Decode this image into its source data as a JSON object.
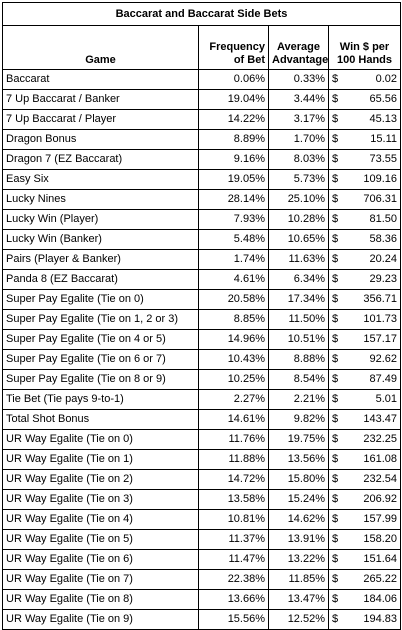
{
  "title": "Baccarat and Baccarat Side Bets",
  "headers": {
    "game": "Game",
    "freq_line1": "Frequency",
    "freq_line2": "of Bet",
    "adv_line1": "Average",
    "adv_line2": "Advantage",
    "win_line1": "Win $ per",
    "win_line2": "100 Hands"
  },
  "rows": [
    {
      "game": "Baccarat",
      "freq": "0.06%",
      "adv": "0.33%",
      "cur": "$",
      "win": "0.02"
    },
    {
      "game": "7 Up Baccarat / Banker",
      "freq": "19.04%",
      "adv": "3.44%",
      "cur": "$",
      "win": "65.56"
    },
    {
      "game": "7 Up Baccarat / Player",
      "freq": "14.22%",
      "adv": "3.17%",
      "cur": "$",
      "win": "45.13"
    },
    {
      "game": "Dragon Bonus",
      "freq": "8.89%",
      "adv": "1.70%",
      "cur": "$",
      "win": "15.11"
    },
    {
      "game": "Dragon 7 (EZ Baccarat)",
      "freq": "9.16%",
      "adv": "8.03%",
      "cur": "$",
      "win": "73.55"
    },
    {
      "game": "Easy Six",
      "freq": "19.05%",
      "adv": "5.73%",
      "cur": "$",
      "win": "109.16"
    },
    {
      "game": "Lucky Nines",
      "freq": "28.14%",
      "adv": "25.10%",
      "cur": "$",
      "win": "706.31"
    },
    {
      "game": "Lucky Win (Player)",
      "freq": "7.93%",
      "adv": "10.28%",
      "cur": "$",
      "win": "81.50"
    },
    {
      "game": "Lucky Win (Banker)",
      "freq": "5.48%",
      "adv": "10.65%",
      "cur": "$",
      "win": "58.36"
    },
    {
      "game": "Pairs (Player & Banker)",
      "freq": "1.74%",
      "adv": "11.63%",
      "cur": "$",
      "win": "20.24"
    },
    {
      "game": "Panda 8 (EZ Baccarat)",
      "freq": "4.61%",
      "adv": "6.34%",
      "cur": "$",
      "win": "29.23"
    },
    {
      "game": "Super Pay Egalite (Tie on 0)",
      "freq": "20.58%",
      "adv": "17.34%",
      "cur": "$",
      "win": "356.71"
    },
    {
      "game": "Super Pay Egalite (Tie on 1, 2 or 3)",
      "freq": "8.85%",
      "adv": "11.50%",
      "cur": "$",
      "win": "101.73"
    },
    {
      "game": "Super Pay Egalite (Tie on 4 or 5)",
      "freq": "14.96%",
      "adv": "10.51%",
      "cur": "$",
      "win": "157.17"
    },
    {
      "game": "Super Pay Egalite (Tie on 6 or 7)",
      "freq": "10.43%",
      "adv": "8.88%",
      "cur": "$",
      "win": "92.62"
    },
    {
      "game": "Super Pay Egalite (Tie on 8 or 9)",
      "freq": "10.25%",
      "adv": "8.54%",
      "cur": "$",
      "win": "87.49"
    },
    {
      "game": "Tie Bet (Tie pays 9-to-1)",
      "freq": "2.27%",
      "adv": "2.21%",
      "cur": "$",
      "win": "5.01"
    },
    {
      "game": "Total Shot Bonus",
      "freq": "14.61%",
      "adv": "9.82%",
      "cur": "$",
      "win": "143.47"
    },
    {
      "game": "UR Way Egalite (Tie on 0)",
      "freq": "11.76%",
      "adv": "19.75%",
      "cur": "$",
      "win": "232.25"
    },
    {
      "game": "UR Way Egalite (Tie on 1)",
      "freq": "11.88%",
      "adv": "13.56%",
      "cur": "$",
      "win": "161.08"
    },
    {
      "game": "UR Way Egalite (Tie on 2)",
      "freq": "14.72%",
      "adv": "15.80%",
      "cur": "$",
      "win": "232.54"
    },
    {
      "game": "UR Way Egalite (Tie on 3)",
      "freq": "13.58%",
      "adv": "15.24%",
      "cur": "$",
      "win": "206.92"
    },
    {
      "game": "UR Way Egalite (Tie on 4)",
      "freq": "10.81%",
      "adv": "14.62%",
      "cur": "$",
      "win": "157.99"
    },
    {
      "game": "UR Way Egalite (Tie on 5)",
      "freq": "11.37%",
      "adv": "13.91%",
      "cur": "$",
      "win": "158.20"
    },
    {
      "game": "UR Way Egalite (Tie on 6)",
      "freq": "11.47%",
      "adv": "13.22%",
      "cur": "$",
      "win": "151.64"
    },
    {
      "game": "UR Way Egalite (Tie on 7)",
      "freq": "22.38%",
      "adv": "11.85%",
      "cur": "$",
      "win": "265.22"
    },
    {
      "game": "UR Way Egalite (Tie on 8)",
      "freq": "13.66%",
      "adv": "13.47%",
      "cur": "$",
      "win": "184.06"
    },
    {
      "game": "UR Way Egalite (Tie on 9)",
      "freq": "15.56%",
      "adv": "12.52%",
      "cur": "$",
      "win": "194.83"
    }
  ]
}
